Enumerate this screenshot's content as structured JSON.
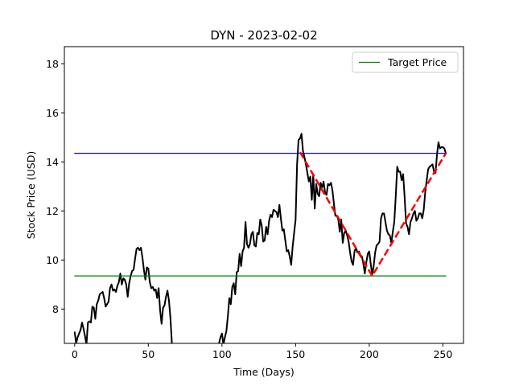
{
  "chart_data": {
    "type": "line",
    "title": "DYN - 2023-02-02",
    "xlabel": "Time (Days)",
    "ylabel": "Stock Price (USD)",
    "xlim": [
      -7,
      264
    ],
    "ylim": [
      6.6,
      18.7
    ],
    "xticks": [
      0,
      50,
      100,
      150,
      200,
      250
    ],
    "yticks": [
      8,
      10,
      12,
      14,
      16,
      18
    ],
    "grid": false,
    "legend": {
      "placement": "top-right",
      "entries": [
        {
          "label": "Target Price",
          "color": "#008000"
        }
      ]
    },
    "series": [
      {
        "role": "price",
        "color": "#000000",
        "points": [
          [
            0,
            7.05
          ],
          [
            1,
            6.6
          ],
          [
            2,
            6.85
          ],
          [
            3,
            7.0
          ],
          [
            4,
            7.15
          ],
          [
            5,
            7.45
          ],
          [
            6,
            7.2
          ],
          [
            7,
            6.9
          ],
          [
            8,
            6.55
          ],
          [
            9,
            7.45
          ],
          [
            10,
            7.5
          ],
          [
            11,
            7.45
          ],
          [
            12,
            8.1
          ],
          [
            13,
            8.05
          ],
          [
            14,
            7.6
          ],
          [
            15,
            8.2
          ],
          [
            16,
            8.35
          ],
          [
            17,
            8.6
          ],
          [
            18,
            8.65
          ],
          [
            19,
            8.7
          ],
          [
            20,
            8.45
          ],
          [
            21,
            8.1
          ],
          [
            22,
            8.2
          ],
          [
            23,
            8.3
          ],
          [
            24,
            8.85
          ],
          [
            25,
            9.0
          ],
          [
            26,
            8.75
          ],
          [
            27,
            8.8
          ],
          [
            28,
            8.7
          ],
          [
            29,
            8.95
          ],
          [
            30,
            9.1
          ],
          [
            31,
            9.45
          ],
          [
            32,
            9.0
          ],
          [
            33,
            9.25
          ],
          [
            34,
            9.2
          ],
          [
            35,
            9.0
          ],
          [
            36,
            8.5
          ],
          [
            37,
            9.05
          ],
          [
            38,
            9.35
          ],
          [
            39,
            9.55
          ],
          [
            40,
            9.6
          ],
          [
            41,
            10.05
          ],
          [
            42,
            10.45
          ],
          [
            43,
            10.5
          ],
          [
            44,
            10.4
          ],
          [
            45,
            10.5
          ],
          [
            46,
            10.1
          ],
          [
            47,
            9.6
          ],
          [
            48,
            9.2
          ],
          [
            49,
            9.7
          ],
          [
            50,
            9.65
          ],
          [
            51,
            9.1
          ],
          [
            52,
            8.85
          ],
          [
            53,
            8.9
          ],
          [
            54,
            8.75
          ],
          [
            55,
            8.8
          ],
          [
            56,
            8.45
          ],
          [
            57,
            8.85
          ],
          [
            58,
            7.95
          ],
          [
            59,
            7.4
          ],
          [
            60,
            8.05
          ],
          [
            61,
            8.15
          ],
          [
            62,
            8.5
          ],
          [
            63,
            8.75
          ],
          [
            64,
            8.35
          ],
          [
            65,
            7.65
          ],
          [
            66,
            6.6
          ],
          null,
          [
            98,
            6.6
          ],
          [
            99,
            6.85
          ],
          [
            100,
            7.0
          ],
          [
            101,
            6.55
          ],
          [
            102,
            6.85
          ],
          [
            103,
            7.1
          ],
          [
            104,
            7.7
          ],
          [
            105,
            8.45
          ],
          [
            106,
            8.2
          ],
          [
            107,
            8.9
          ],
          [
            108,
            9.05
          ],
          [
            109,
            8.6
          ],
          [
            110,
            9.5
          ],
          [
            111,
            9.55
          ],
          [
            112,
            10.25
          ],
          [
            113,
            9.75
          ],
          [
            114,
            10.35
          ],
          [
            115,
            10.5
          ],
          [
            116,
            11.55
          ],
          [
            117,
            10.65
          ],
          [
            118,
            10.5
          ],
          [
            119,
            10.65
          ],
          [
            120,
            11.05
          ],
          [
            121,
            11.15
          ],
          [
            122,
            10.6
          ],
          [
            123,
            10.55
          ],
          [
            124,
            11.1
          ],
          [
            125,
            11.05
          ],
          [
            126,
            11.65
          ],
          [
            127,
            11.4
          ],
          [
            128,
            10.75
          ],
          [
            129,
            10.8
          ],
          [
            130,
            11.35
          ],
          [
            131,
            11.05
          ],
          [
            132,
            11.6
          ],
          [
            133,
            11.85
          ],
          [
            134,
            11.75
          ],
          [
            135,
            12.05
          ],
          [
            136,
            12.0
          ],
          [
            137,
            11.95
          ],
          [
            138,
            11.75
          ],
          [
            139,
            12.25
          ],
          [
            140,
            11.7
          ],
          [
            141,
            11.2
          ],
          [
            142,
            11.25
          ],
          [
            143,
            10.8
          ],
          [
            144,
            10.35
          ],
          [
            145,
            10.4
          ],
          [
            146,
            10.15
          ],
          [
            147,
            9.8
          ],
          [
            148,
            10.55
          ],
          [
            149,
            11.1
          ],
          [
            150,
            11.65
          ],
          [
            151,
            13.9
          ],
          [
            152,
            14.9
          ],
          [
            153,
            14.95
          ],
          [
            154,
            15.15
          ],
          [
            155,
            14.45
          ],
          [
            156,
            14.2
          ],
          [
            157,
            13.9
          ],
          [
            158,
            13.55
          ],
          [
            159,
            13.2
          ],
          [
            160,
            13.4
          ],
          [
            161,
            12.45
          ],
          [
            162,
            13.5
          ],
          [
            163,
            12.1
          ],
          [
            164,
            13.1
          ],
          [
            165,
            12.7
          ],
          [
            166,
            12.6
          ],
          [
            167,
            13.15
          ],
          [
            168,
            12.95
          ],
          [
            169,
            13.2
          ],
          [
            170,
            12.75
          ],
          [
            171,
            12.65
          ],
          [
            172,
            13.1
          ],
          [
            173,
            13.05
          ],
          [
            174,
            13.15
          ],
          [
            175,
            12.85
          ],
          [
            176,
            12.3
          ],
          [
            177,
            11.8
          ],
          [
            178,
            11.8
          ],
          [
            179,
            11.65
          ],
          [
            180,
            11.15
          ],
          [
            181,
            11.65
          ],
          [
            182,
            10.7
          ],
          [
            183,
            11.1
          ],
          [
            184,
            11.2
          ],
          [
            185,
            11.0
          ],
          [
            186,
            10.75
          ],
          [
            187,
            10.3
          ],
          [
            188,
            9.95
          ],
          [
            189,
            9.8
          ],
          [
            190,
            10.35
          ],
          [
            191,
            10.5
          ],
          [
            192,
            10.3
          ],
          [
            193,
            10.35
          ],
          [
            194,
            10.2
          ],
          [
            195,
            10.15
          ],
          [
            196,
            9.85
          ],
          [
            197,
            9.45
          ],
          [
            198,
            9.9
          ],
          [
            199,
            10.25
          ],
          [
            200,
            10.35
          ],
          [
            201,
            9.85
          ],
          [
            202,
            9.4
          ],
          [
            203,
            9.75
          ],
          [
            204,
            10.3
          ],
          [
            205,
            10.6
          ],
          [
            206,
            10.65
          ],
          [
            207,
            10.75
          ],
          [
            208,
            11.7
          ],
          [
            209,
            11.9
          ],
          [
            210,
            11.9
          ],
          [
            211,
            11.55
          ],
          [
            212,
            11.2
          ],
          [
            213,
            11.05
          ],
          [
            214,
            11.0
          ],
          [
            215,
            10.7
          ],
          [
            216,
            11.15
          ],
          [
            217,
            11.55
          ],
          [
            218,
            12.6
          ],
          [
            219,
            13.8
          ],
          [
            220,
            13.6
          ],
          [
            221,
            13.6
          ],
          [
            222,
            13.25
          ],
          [
            223,
            13.5
          ],
          [
            224,
            12.6
          ],
          [
            225,
            11.5
          ],
          [
            226,
            11.35
          ],
          [
            227,
            11.05
          ],
          [
            228,
            11.55
          ],
          [
            229,
            11.7
          ],
          [
            230,
            11.9
          ],
          [
            231,
            12.0
          ],
          [
            232,
            11.6
          ],
          [
            233,
            11.7
          ],
          [
            234,
            11.9
          ],
          [
            235,
            11.9
          ],
          [
            236,
            11.7
          ],
          [
            237,
            12.05
          ],
          [
            238,
            12.75
          ],
          [
            239,
            13.25
          ],
          [
            240,
            13.7
          ],
          [
            241,
            13.8
          ],
          [
            242,
            13.85
          ],
          [
            243,
            13.9
          ],
          [
            244,
            13.6
          ],
          [
            245,
            13.55
          ],
          [
            246,
            14.3
          ],
          [
            247,
            14.8
          ],
          [
            248,
            14.55
          ],
          [
            249,
            14.6
          ],
          [
            250,
            14.6
          ],
          [
            251,
            14.55
          ],
          [
            252,
            14.35
          ]
        ]
      },
      {
        "role": "upper-level",
        "color": "#0000ff",
        "points": [
          [
            0,
            14.35
          ],
          [
            252,
            14.35
          ]
        ]
      },
      {
        "role": "target",
        "name": "Target Price",
        "color": "#008000",
        "points": [
          [
            0,
            9.35
          ],
          [
            252,
            9.35
          ]
        ]
      },
      {
        "role": "pattern",
        "color": "#ff0000",
        "dashed": true,
        "points": [
          [
            153,
            14.4
          ],
          [
            202,
            9.35
          ],
          [
            252,
            14.35
          ]
        ]
      }
    ]
  }
}
